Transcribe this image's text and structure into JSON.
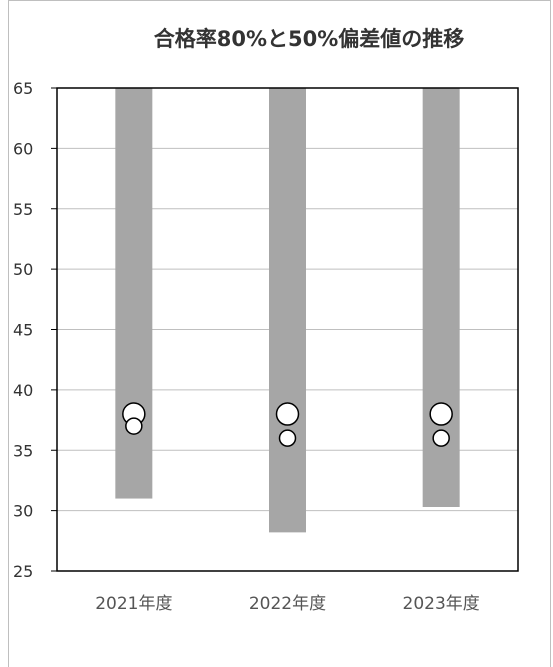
{
  "chart_data": {
    "type": "bar",
    "title": "合格率80%と50%偏差値の推移",
    "xlabel": "",
    "ylabel": "",
    "ylim": [
      25,
      65
    ],
    "ytick_step": 5,
    "grid": true,
    "legend": "none",
    "categories": [
      "2021年度",
      "2022年度",
      "2023年度"
    ],
    "series": [
      {
        "kind": "range-bar",
        "low": [
          31,
          28.2,
          30.3
        ],
        "high": [
          65,
          65,
          65
        ],
        "color": "#a6a6a6"
      },
      {
        "kind": "marker",
        "marker_size": "large",
        "values": [
          38,
          38,
          38
        ],
        "color": "#ffffff"
      },
      {
        "kind": "marker",
        "marker_size": "small",
        "values": [
          37,
          36,
          36
        ],
        "color": "#ffffff"
      }
    ]
  }
}
